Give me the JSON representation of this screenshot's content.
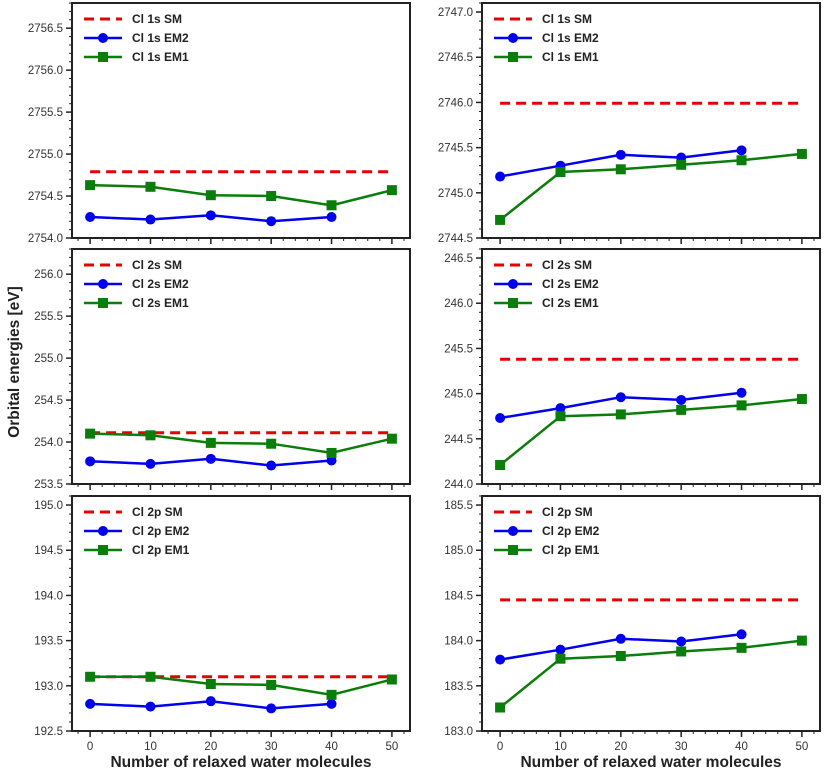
{
  "figure": {
    "ylabel": "Orbital energies [eV]",
    "xlabel": "Number of relaxed water molecules",
    "colors": {
      "SM": "#e60000",
      "EM2": "#0000ee",
      "EM1": "#0a7d0a"
    }
  },
  "chart_data": [
    {
      "type": "line",
      "row": 0,
      "col": 0,
      "x": [
        0,
        10,
        20,
        30,
        40,
        50
      ],
      "xlim": [
        -3,
        53
      ],
      "xticks": [
        0,
        10,
        20,
        30,
        40,
        50
      ],
      "ylim": [
        2754.0,
        2756.8
      ],
      "yticks": [
        2754.0,
        2754.5,
        2755.0,
        2755.5,
        2756.0,
        2756.5
      ],
      "ytick_labels": [
        "2754.0",
        "2754.5",
        "2755.0",
        "2755.5",
        "2756.0",
        "2756.5"
      ],
      "xlabel": "",
      "ylabel": "",
      "series": [
        {
          "name": "Cl 1s SM",
          "key": "SM",
          "style": "dashed",
          "values": [
            2754.79,
            2754.79,
            2754.79,
            2754.79,
            2754.79,
            2754.79
          ]
        },
        {
          "name": "Cl 1s EM2",
          "key": "EM2",
          "style": "circle",
          "values": [
            2754.25,
            2754.22,
            2754.27,
            2754.2,
            2754.25,
            null
          ]
        },
        {
          "name": "Cl 1s EM1",
          "key": "EM1",
          "style": "square",
          "values": [
            2754.63,
            2754.61,
            2754.51,
            2754.5,
            2754.39,
            2754.57
          ]
        }
      ]
    },
    {
      "type": "line",
      "row": 0,
      "col": 1,
      "x": [
        0,
        10,
        20,
        30,
        40,
        50
      ],
      "xlim": [
        -3,
        53
      ],
      "xticks": [
        0,
        10,
        20,
        30,
        40,
        50
      ],
      "ylim": [
        2744.5,
        2747.1
      ],
      "yticks": [
        2744.5,
        2745.0,
        2745.5,
        2746.0,
        2746.5,
        2747.0
      ],
      "ytick_labels": [
        "2744.5",
        "2745.0",
        "2745.5",
        "2746.0",
        "2746.5",
        "2747.0"
      ],
      "xlabel": "",
      "ylabel": "",
      "series": [
        {
          "name": "Cl 1s SM",
          "key": "SM",
          "style": "dashed",
          "values": [
            2745.99,
            2745.99,
            2745.99,
            2745.99,
            2745.99,
            2745.99
          ]
        },
        {
          "name": "Cl 1s EM2",
          "key": "EM2",
          "style": "circle",
          "values": [
            2745.18,
            2745.3,
            2745.42,
            2745.39,
            2745.47,
            null
          ]
        },
        {
          "name": "Cl 1s EM1",
          "key": "EM1",
          "style": "square",
          "values": [
            2744.7,
            2745.23,
            2745.26,
            2745.31,
            2745.36,
            2745.43
          ]
        }
      ]
    },
    {
      "type": "line",
      "row": 1,
      "col": 0,
      "x": [
        0,
        10,
        20,
        30,
        40,
        50
      ],
      "xlim": [
        -3,
        53
      ],
      "xticks": [
        0,
        10,
        20,
        30,
        40,
        50
      ],
      "ylim": [
        253.5,
        256.3
      ],
      "yticks": [
        253.5,
        254.0,
        254.5,
        255.0,
        255.5,
        256.0
      ],
      "ytick_labels": [
        "253.5",
        "254.0",
        "254.5",
        "255.0",
        "255.5",
        "256.0"
      ],
      "xlabel": "",
      "ylabel": "Orbital energies [eV]",
      "series": [
        {
          "name": "Cl 2s SM",
          "key": "SM",
          "style": "dashed",
          "values": [
            254.11,
            254.11,
            254.11,
            254.11,
            254.11,
            254.11
          ]
        },
        {
          "name": "Cl 2s EM2",
          "key": "EM2",
          "style": "circle",
          "values": [
            253.77,
            253.74,
            253.8,
            253.72,
            253.78,
            null
          ]
        },
        {
          "name": "Cl 2s EM1",
          "key": "EM1",
          "style": "square",
          "values": [
            254.1,
            254.08,
            253.99,
            253.98,
            253.87,
            254.04
          ]
        }
      ]
    },
    {
      "type": "line",
      "row": 1,
      "col": 1,
      "x": [
        0,
        10,
        20,
        30,
        40,
        50
      ],
      "xlim": [
        -3,
        53
      ],
      "xticks": [
        0,
        10,
        20,
        30,
        40,
        50
      ],
      "ylim": [
        244.0,
        246.6
      ],
      "yticks": [
        244.0,
        244.5,
        245.0,
        245.5,
        246.0,
        246.5
      ],
      "ytick_labels": [
        "244.0",
        "244.5",
        "245.0",
        "245.5",
        "246.0",
        "246.5"
      ],
      "xlabel": "",
      "ylabel": "",
      "series": [
        {
          "name": "Cl 2s SM",
          "key": "SM",
          "style": "dashed",
          "values": [
            245.38,
            245.38,
            245.38,
            245.38,
            245.38,
            245.38
          ]
        },
        {
          "name": "Cl 2s EM2",
          "key": "EM2",
          "style": "circle",
          "values": [
            244.73,
            244.84,
            244.96,
            244.93,
            245.01,
            null
          ]
        },
        {
          "name": "Cl 2s EM1",
          "key": "EM1",
          "style": "square",
          "values": [
            244.21,
            244.75,
            244.77,
            244.82,
            244.87,
            244.94
          ]
        }
      ]
    },
    {
      "type": "line",
      "row": 2,
      "col": 0,
      "x": [
        0,
        10,
        20,
        30,
        40,
        50
      ],
      "xlim": [
        -3,
        53
      ],
      "xticks": [
        0,
        10,
        20,
        30,
        40,
        50
      ],
      "ylim": [
        192.5,
        195.1
      ],
      "yticks": [
        192.5,
        193.0,
        193.5,
        194.0,
        194.5,
        195.0
      ],
      "ytick_labels": [
        "192.5",
        "193.0",
        "193.5",
        "194.0",
        "194.5",
        "195.0"
      ],
      "xlabel": "Number of relaxed water molecules",
      "ylabel": "",
      "series": [
        {
          "name": "Cl 2p SM",
          "key": "SM",
          "style": "dashed",
          "values": [
            193.1,
            193.1,
            193.1,
            193.1,
            193.1,
            193.1
          ]
        },
        {
          "name": "Cl 2p EM2",
          "key": "EM2",
          "style": "circle",
          "values": [
            192.8,
            192.77,
            192.83,
            192.75,
            192.8,
            null
          ]
        },
        {
          "name": "Cl 2p EM1",
          "key": "EM1",
          "style": "square",
          "values": [
            193.1,
            193.1,
            193.02,
            193.01,
            192.9,
            193.07
          ]
        }
      ]
    },
    {
      "type": "line",
      "row": 2,
      "col": 1,
      "x": [
        0,
        10,
        20,
        30,
        40,
        50
      ],
      "xlim": [
        -3,
        53
      ],
      "xticks": [
        0,
        10,
        20,
        30,
        40,
        50
      ],
      "ylim": [
        183.0,
        185.6
      ],
      "yticks": [
        183.0,
        183.5,
        184.0,
        184.5,
        185.0,
        185.5
      ],
      "ytick_labels": [
        "183.0",
        "183.5",
        "184.0",
        "184.5",
        "185.0",
        "185.5"
      ],
      "xlabel": "Number of relaxed water molecules",
      "ylabel": "",
      "series": [
        {
          "name": "Cl 2p SM",
          "key": "SM",
          "style": "dashed",
          "values": [
            184.45,
            184.45,
            184.45,
            184.45,
            184.45,
            184.45
          ]
        },
        {
          "name": "Cl 2p EM2",
          "key": "EM2",
          "style": "circle",
          "values": [
            183.79,
            183.9,
            184.02,
            183.99,
            184.07,
            null
          ]
        },
        {
          "name": "Cl 2p EM1",
          "key": "EM1",
          "style": "square",
          "values": [
            183.26,
            183.8,
            183.83,
            183.88,
            183.92,
            184.0
          ]
        }
      ]
    }
  ]
}
